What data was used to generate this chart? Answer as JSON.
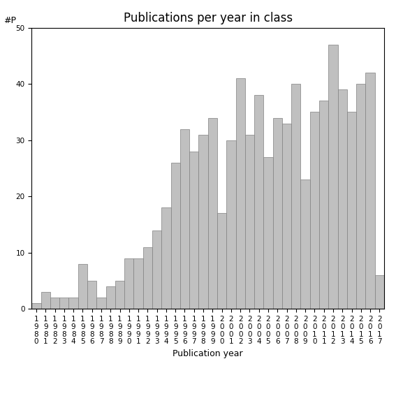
{
  "title": "Publications per year in class",
  "xlabel": "Publication year",
  "ylabel": "#P",
  "years": [
    "1980",
    "1981",
    "1982",
    "1983",
    "1984",
    "1985",
    "1986",
    "1987",
    "1988",
    "1989",
    "1990",
    "1991",
    "1992",
    "1993",
    "1994",
    "1995",
    "1996",
    "1997",
    "1998",
    "1999",
    "2000",
    "2001",
    "2002",
    "2003",
    "2004",
    "2005",
    "2006",
    "2007",
    "2008",
    "2009",
    "2010",
    "2011",
    "2012",
    "2013",
    "2014",
    "2015",
    "2016",
    "2017"
  ],
  "values": [
    1,
    3,
    2,
    2,
    2,
    8,
    5,
    2,
    4,
    5,
    9,
    9,
    11,
    14,
    18,
    26,
    32,
    28,
    31,
    34,
    17,
    30,
    41,
    31,
    38,
    27,
    34,
    33,
    40,
    23,
    35,
    37,
    47,
    39,
    35,
    40,
    42,
    6
  ],
  "bar_color": "#c0c0c0",
  "bar_edge_color": "#808080",
  "ylim": [
    0,
    50
  ],
  "yticks": [
    0,
    10,
    20,
    30,
    40,
    50
  ],
  "background_color": "#ffffff",
  "title_fontsize": 12,
  "label_fontsize": 9,
  "tick_fontsize": 7.5
}
